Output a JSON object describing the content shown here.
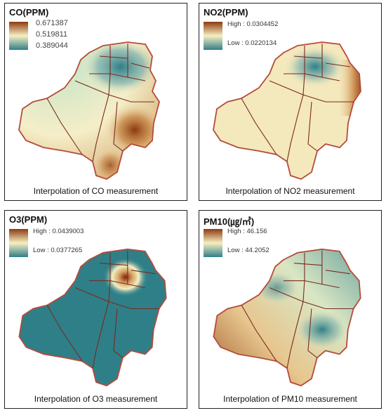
{
  "panels": [
    {
      "title": "CO(PPM)",
      "legend": {
        "high": "0.671387",
        "mid": "0.519811",
        "low": "0.389044"
      },
      "caption": "Interpolation of CO measurement",
      "colors": {
        "high": "#8b3a0e",
        "mid": "#f6efc1",
        "low": "#2f7f88"
      }
    },
    {
      "title": "NO2(PPM)",
      "legend": {
        "high": "High : 0.0304452",
        "low": "Low : 0.0220134"
      },
      "caption": "Interpolation of NO2 measurement",
      "colors": {
        "high": "#8b3a0e",
        "mid": "#f6efc1",
        "low": "#2f7f88"
      }
    },
    {
      "title": "O3(PPM)",
      "legend": {
        "high": "High : 0.0439003",
        "low": "Low : 0.0377265"
      },
      "caption": "Interpolation of O3 measurement",
      "colors": {
        "high": "#8b3a0e",
        "mid": "#f6efc1",
        "low": "#2f7f88"
      }
    },
    {
      "title": "PM10(㎍/㎥)",
      "legend": {
        "high": "High : 46.156",
        "low": "Low : 44.2052"
      },
      "caption": "Interpolation of PM10 measurement",
      "colors": {
        "high": "#8b3a0e",
        "mid": "#f6efc1",
        "low": "#2f7f88"
      }
    }
  ]
}
